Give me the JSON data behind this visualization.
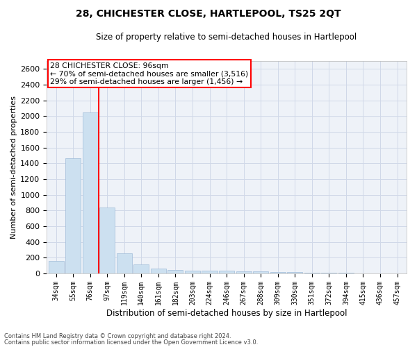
{
  "title": "28, CHICHESTER CLOSE, HARTLEPOOL, TS25 2QT",
  "subtitle": "Size of property relative to semi-detached houses in Hartlepool",
  "xlabel": "Distribution of semi-detached houses by size in Hartlepool",
  "ylabel": "Number of semi-detached properties",
  "bar_color": "#cce0f0",
  "bar_edge_color": "#a0bcd8",
  "categories": [
    "34sqm",
    "55sqm",
    "76sqm",
    "97sqm",
    "119sqm",
    "140sqm",
    "161sqm",
    "182sqm",
    "203sqm",
    "224sqm",
    "246sqm",
    "267sqm",
    "288sqm",
    "309sqm",
    "330sqm",
    "351sqm",
    "372sqm",
    "394sqm",
    "415sqm",
    "436sqm",
    "457sqm"
  ],
  "values": [
    155,
    1465,
    2045,
    835,
    255,
    115,
    65,
    42,
    37,
    35,
    32,
    30,
    25,
    20,
    14,
    10,
    7,
    5,
    3,
    2,
    1
  ],
  "ylim": [
    0,
    2700
  ],
  "yticks": [
    0,
    200,
    400,
    600,
    800,
    1000,
    1200,
    1400,
    1600,
    1800,
    2000,
    2200,
    2400,
    2600
  ],
  "property_line_x": 2.5,
  "annotation_text": "28 CHICHESTER CLOSE: 96sqm\n← 70% of semi-detached houses are smaller (3,516)\n29% of semi-detached houses are larger (1,456) →",
  "footnote1": "Contains HM Land Registry data © Crown copyright and database right 2024.",
  "footnote2": "Contains public sector information licensed under the Open Government Licence v3.0.",
  "grid_color": "#d0d8e8",
  "background_color": "#eef2f8"
}
